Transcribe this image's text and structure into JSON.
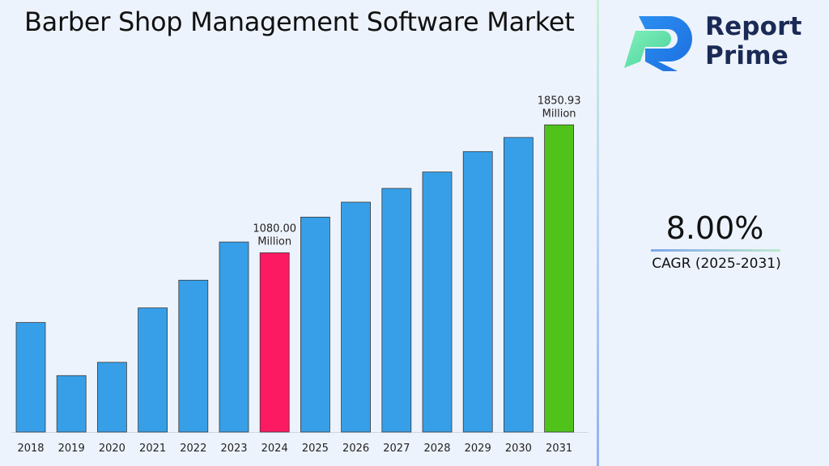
{
  "title": "Barber Shop Management Software Market",
  "logo": {
    "line1": "Report",
    "line2": "Prime"
  },
  "cagr": {
    "value": "8.00%",
    "label": "CAGR (2025-2031)"
  },
  "colors": {
    "bar": "#379fe8",
    "highlight_base_year": "#fc1a63",
    "highlight_final_year": "#4fc31a",
    "logo_dark": "#1b2a55",
    "logo_blue": "#2b8ff0",
    "logo_green": "#4ed7a0"
  },
  "chart_data": {
    "type": "bar",
    "categories": [
      "2018",
      "2019",
      "2020",
      "2021",
      "2022",
      "2023",
      "2024",
      "2025",
      "2026",
      "2027",
      "2028",
      "2029",
      "2030",
      "2031"
    ],
    "values": [
      660,
      340,
      420,
      748,
      915,
      1145,
      1080.0,
      1295,
      1385,
      1468,
      1567,
      1690,
      1775,
      1850.93
    ],
    "ylim": [
      0,
      1950
    ],
    "grid": false,
    "data_labels": [
      {
        "category": "2024",
        "lines": [
          "1080.00",
          "Million"
        ]
      },
      {
        "category": "2031",
        "lines": [
          "1850.93",
          "Million"
        ]
      }
    ],
    "highlight": {
      "2024": "highlight_base_year",
      "2031": "highlight_final_year"
    }
  }
}
